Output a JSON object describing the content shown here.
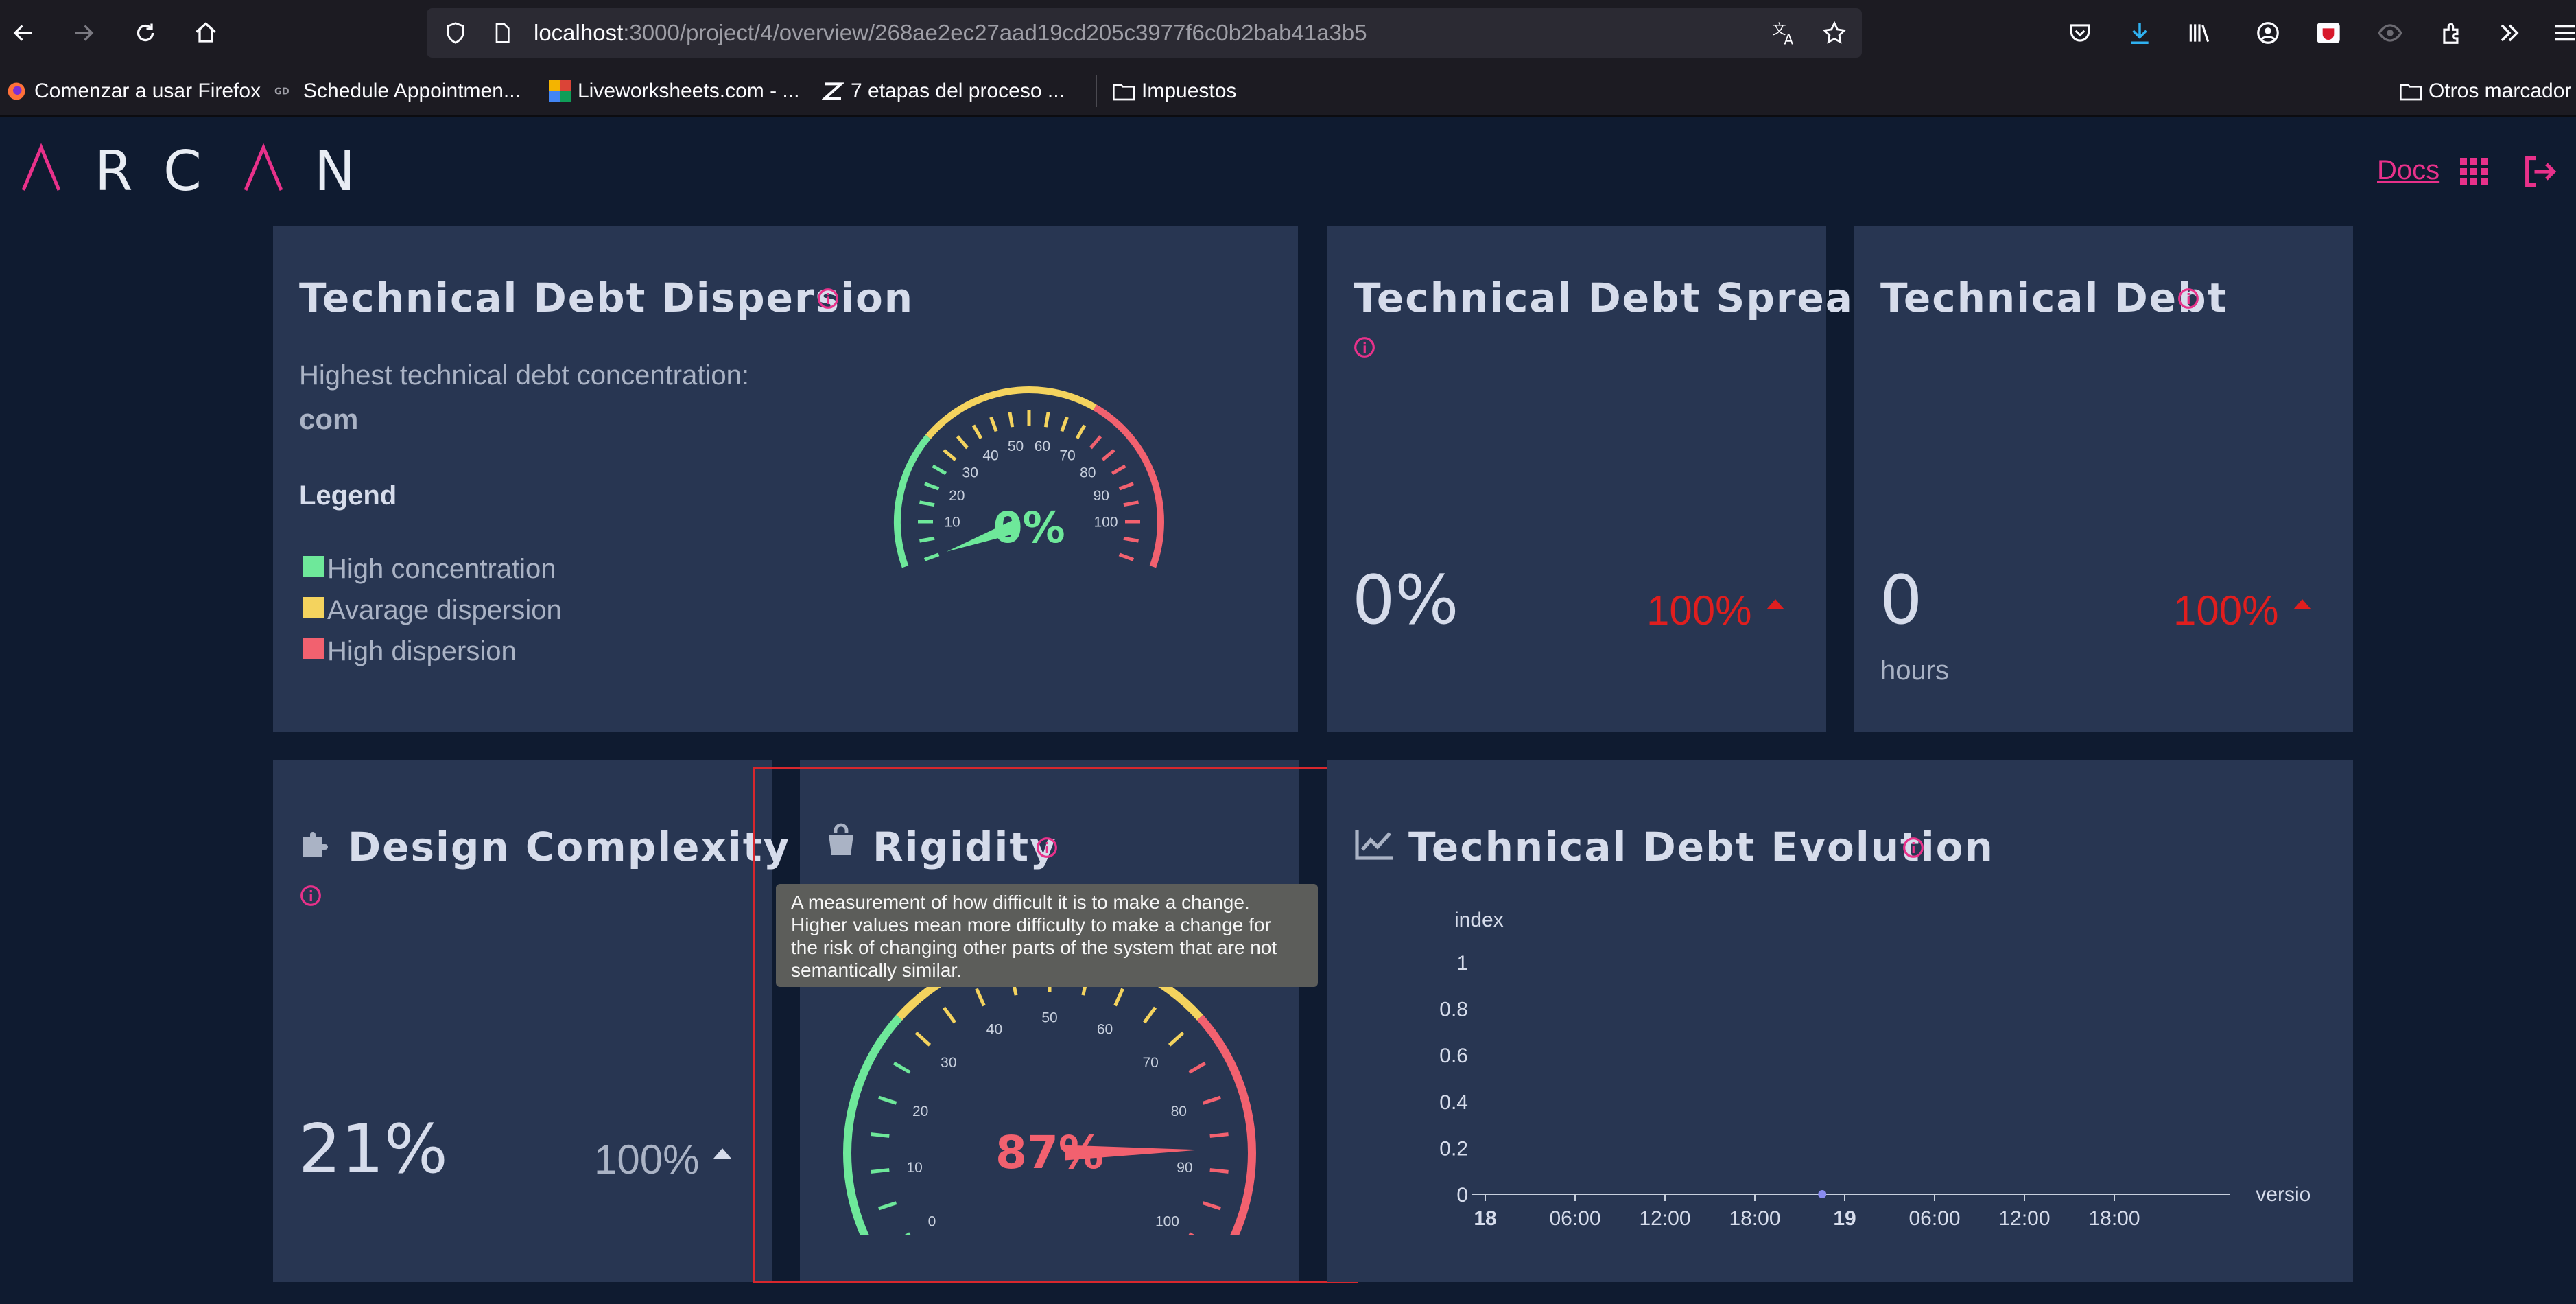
{
  "browser": {
    "url_host": "localhost",
    "url_path": ":3000/project/4/overview/268ae2ec27aad19cd205c3977f6c0b2bab41a3b5",
    "bookmarks": [
      {
        "label": "Comenzar a usar Firefox",
        "icon": "firefox-icon"
      },
      {
        "label": "Schedule Appointmen...",
        "icon": "gd-icon"
      },
      {
        "label": "Liveworksheets.com - ...",
        "icon": "liveworksheets-icon"
      },
      {
        "label": "7 etapas del proceso ...",
        "icon": "zap-icon"
      },
      {
        "label": "Impuestos",
        "icon": "folder-icon"
      },
      {
        "label": "Otros marcador",
        "icon": "folder-icon"
      }
    ]
  },
  "app": {
    "logo_text": "ARCAN",
    "docs_label": "Docs",
    "accent": "#e8318a"
  },
  "dispersion": {
    "title": "Technical Debt Dispersion",
    "concentration_label": "Highest technical debt concentration:",
    "concentration_value": "com",
    "legend_title": "Legend",
    "legend": [
      {
        "label": "High concentration",
        "color": "#6ee89a"
      },
      {
        "label": "Avarage dispersion",
        "color": "#f4d35e"
      },
      {
        "label": "High dispersion",
        "color": "#f2616f"
      }
    ],
    "gauge": {
      "value": 0,
      "display": "0%",
      "display_color": "#6ee89a",
      "ticks": [
        "10",
        "20",
        "30",
        "40",
        "50",
        "60",
        "70",
        "80",
        "90",
        "100"
      ]
    }
  },
  "spread": {
    "title": "Technical Debt Spread",
    "value": "0%",
    "trend": "100%"
  },
  "debt": {
    "title": "Technical Debt",
    "value": "0",
    "unit": "hours",
    "trend": "100%"
  },
  "complexity": {
    "title": "Design Complexity",
    "value": "21%",
    "trend": "100%"
  },
  "rigidity": {
    "title": "Rigidity",
    "tooltip": "A measurement of how difficult it is to make a change. Higher values mean more difficulty to make a change for the risk of changing other parts of the system that are not semantically similar.",
    "gauge": {
      "value": 87,
      "display": "87%",
      "display_color": "#f2616f",
      "ticks": [
        "0",
        "10",
        "20",
        "30",
        "40",
        "50",
        "60",
        "70",
        "80",
        "90",
        "100"
      ]
    }
  },
  "evolution": {
    "title": "Technical Debt Evolution",
    "chart_data": {
      "type": "line",
      "title": "",
      "ylabel": "index",
      "xlabel": "version",
      "ylim": [
        0,
        1
      ],
      "yticks": [
        "0",
        "0.2",
        "0.4",
        "0.6",
        "0.8",
        "1"
      ],
      "xticks": [
        "18",
        "06:00",
        "12:00",
        "18:00",
        "19",
        "06:00",
        "12:00",
        "18:00"
      ],
      "bold_xticks": [
        "18",
        "19"
      ],
      "series": [
        {
          "x": [
            "18 23:30"
          ],
          "values": [
            0
          ]
        }
      ],
      "grid": false,
      "line_color": "#8a8cf0"
    }
  }
}
